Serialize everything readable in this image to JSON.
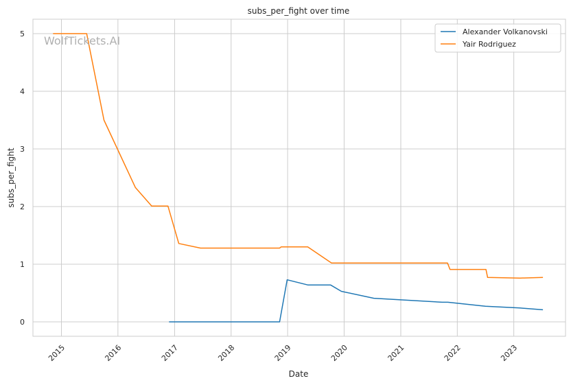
{
  "chart_data": {
    "type": "line",
    "title": "subs_per_fight over time",
    "xlabel": "Date",
    "ylabel": "subs_per_fight",
    "watermark": "WolfTickets.AI",
    "xlim": [
      "2014-07-01",
      "2023-12-01"
    ],
    "ylim": [
      -0.25,
      5.25
    ],
    "x_ticks": [
      "2015",
      "2016",
      "2017",
      "2018",
      "2019",
      "2020",
      "2021",
      "2022",
      "2023"
    ],
    "y_ticks": [
      0,
      1,
      2,
      3,
      4,
      5
    ],
    "grid": true,
    "legend_position": "top-right",
    "series": [
      {
        "name": "Alexander Volkanovski",
        "color": "#1f77b4",
        "points": [
          [
            "2016-11-26",
            0
          ],
          [
            "2017-05-13",
            0
          ],
          [
            "2017-09-01",
            0
          ],
          [
            "2018-07-01",
            0
          ],
          [
            "2018-11-10",
            0
          ],
          [
            "2018-12-29",
            0.73
          ],
          [
            "2019-05-11",
            0.64
          ],
          [
            "2019-10-05",
            0.64
          ],
          [
            "2019-12-14",
            0.53
          ],
          [
            "2020-07-11",
            0.41
          ],
          [
            "2021-09-25",
            0.34
          ],
          [
            "2021-11-01",
            0.34
          ],
          [
            "2022-07-02",
            0.27
          ],
          [
            "2023-02-11",
            0.24
          ],
          [
            "2023-07-08",
            0.21
          ]
        ]
      },
      {
        "name": "Yair Rodriguez",
        "color": "#ff7f0e",
        "points": [
          [
            "2014-11-08",
            5
          ],
          [
            "2015-06-13",
            5
          ],
          [
            "2015-10-03",
            3.5
          ],
          [
            "2016-04-23",
            2.33
          ],
          [
            "2016-08-06",
            2.01
          ],
          [
            "2016-11-19",
            2.01
          ],
          [
            "2017-01-28",
            1.36
          ],
          [
            "2017-06-17",
            1.28
          ],
          [
            "2018-11-10",
            1.28
          ],
          [
            "2018-07-01",
            1.28
          ],
          [
            "2018-11-20",
            1.3
          ],
          [
            "2019-05-11",
            1.3
          ],
          [
            "2019-10-12",
            1.02
          ],
          [
            "2021-10-30",
            1.02
          ],
          [
            "2021-11-15",
            0.91
          ],
          [
            "2022-07-05",
            0.91
          ],
          [
            "2022-07-16",
            0.77
          ],
          [
            "2023-02-11",
            0.76
          ],
          [
            "2023-07-08",
            0.77
          ]
        ]
      }
    ]
  }
}
